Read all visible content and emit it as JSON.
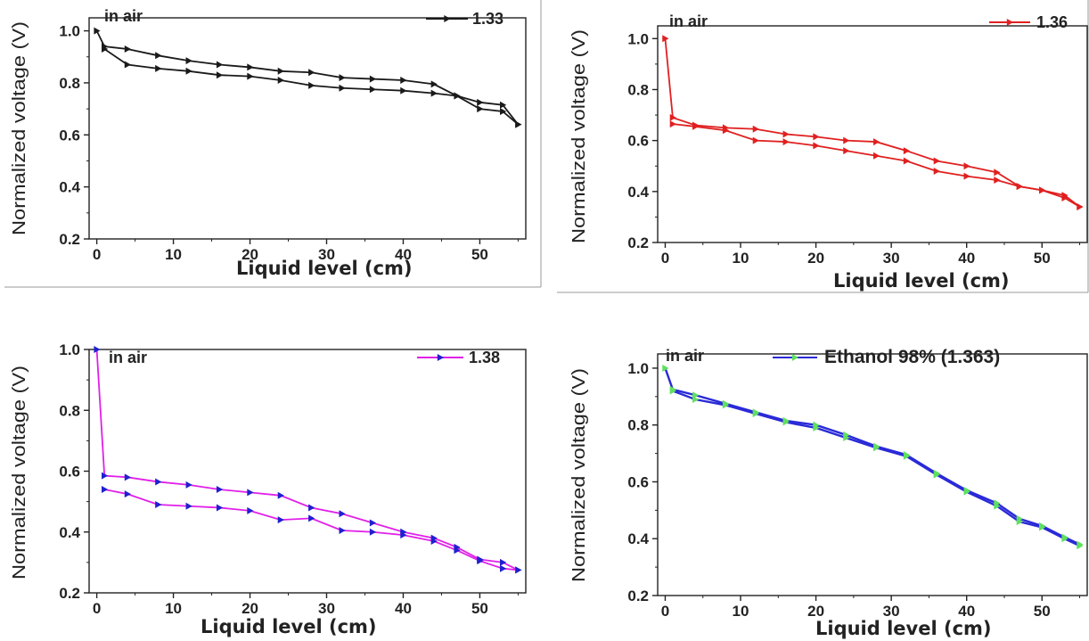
{
  "chart_data": [
    {
      "type": "line",
      "xlabel": "Liquid level (cm)",
      "ylabel": "Normalized voltage (V)",
      "xlim": [
        -1,
        56
      ],
      "ylim": [
        0.2,
        1.05
      ],
      "xticks": [
        "0",
        "10",
        "20",
        "30",
        "40",
        "50"
      ],
      "yticks": [
        "0.2",
        "0.4",
        "0.6",
        "0.8",
        "1.0"
      ],
      "annotation": "in air",
      "color": "#1a1a1a",
      "legend_position": "top-right",
      "series": [
        {
          "name": "1.33",
          "x": [
            0,
            1,
            4,
            8,
            12,
            16,
            20,
            24,
            28,
            32,
            36,
            40,
            44,
            47,
            50,
            53,
            55
          ],
          "y": [
            1.0,
            0.94,
            0.93,
            0.905,
            0.885,
            0.87,
            0.86,
            0.845,
            0.84,
            0.82,
            0.815,
            0.81,
            0.795,
            0.75,
            0.725,
            0.715,
            0.64
          ]
        },
        {
          "x": [
            55,
            53,
            50,
            47,
            44,
            40,
            36,
            32,
            28,
            24,
            20,
            16,
            12,
            8,
            4,
            1
          ],
          "y": [
            0.64,
            0.69,
            0.7,
            0.75,
            0.76,
            0.77,
            0.775,
            0.78,
            0.79,
            0.81,
            0.825,
            0.83,
            0.845,
            0.855,
            0.87,
            0.93
          ]
        }
      ]
    },
    {
      "type": "line",
      "xlabel": "Liquid level (cm)",
      "ylabel": "Normalized voltage (V)",
      "xlim": [
        -1,
        56
      ],
      "ylim": [
        0.2,
        1.05
      ],
      "xticks": [
        "0",
        "10",
        "20",
        "30",
        "40",
        "50"
      ],
      "yticks": [
        "0.2",
        "0.4",
        "0.6",
        "0.8",
        "1.0"
      ],
      "annotation": "in air",
      "color": "#e02020",
      "legend_position": "top-right",
      "series": [
        {
          "name": "1.36",
          "x": [
            0,
            1,
            4,
            8,
            12,
            16,
            20,
            24,
            28,
            32,
            36,
            40,
            44,
            47,
            50,
            53,
            55
          ],
          "y": [
            1.0,
            0.69,
            0.66,
            0.65,
            0.645,
            0.625,
            0.615,
            0.6,
            0.595,
            0.56,
            0.52,
            0.5,
            0.475,
            0.42,
            0.405,
            0.385,
            0.34
          ]
        },
        {
          "x": [
            55,
            53,
            50,
            47,
            44,
            40,
            36,
            32,
            28,
            24,
            20,
            16,
            12,
            8,
            4,
            1
          ],
          "y": [
            0.34,
            0.375,
            0.405,
            0.42,
            0.445,
            0.46,
            0.48,
            0.52,
            0.54,
            0.56,
            0.58,
            0.595,
            0.6,
            0.64,
            0.655,
            0.665
          ]
        }
      ]
    },
    {
      "type": "line",
      "xlabel": "Liquid level (cm)",
      "ylabel": "Normalized voltage (V)",
      "xlim": [
        -1,
        56
      ],
      "ylim": [
        0.2,
        1.0
      ],
      "xticks": [
        "0",
        "10",
        "20",
        "30",
        "40",
        "50"
      ],
      "yticks": [
        "0.2",
        "0.4",
        "0.6",
        "0.8",
        "1.0"
      ],
      "annotation": "in air",
      "color": "#e020e8",
      "marker_color": "#2020d0",
      "legend_position": "top-right",
      "series": [
        {
          "name": "1.38",
          "x": [
            0,
            1,
            4,
            8,
            12,
            16,
            20,
            24,
            28,
            32,
            36,
            40,
            44,
            47,
            50,
            53,
            55
          ],
          "y": [
            1.0,
            0.585,
            0.58,
            0.565,
            0.555,
            0.54,
            0.53,
            0.52,
            0.48,
            0.46,
            0.43,
            0.4,
            0.38,
            0.35,
            0.31,
            0.3,
            0.275
          ]
        },
        {
          "x": [
            55,
            53,
            50,
            47,
            44,
            40,
            36,
            32,
            28,
            24,
            20,
            16,
            12,
            8,
            4,
            1
          ],
          "y": [
            0.275,
            0.28,
            0.305,
            0.34,
            0.37,
            0.39,
            0.4,
            0.405,
            0.445,
            0.44,
            0.47,
            0.48,
            0.485,
            0.49,
            0.525,
            0.54
          ]
        }
      ]
    },
    {
      "type": "line",
      "xlabel": "Liquid level (cm)",
      "ylabel": "Normalized voltage (V)",
      "xlim": [
        -1,
        56
      ],
      "ylim": [
        0.2,
        1.05
      ],
      "xticks": [
        "0",
        "10",
        "20",
        "30",
        "40",
        "50"
      ],
      "yticks": [
        "0.2",
        "0.4",
        "0.6",
        "0.8",
        "1.0"
      ],
      "annotation": "in air",
      "color": "#2a2ad8",
      "marker_color": "#5fe05f",
      "legend_position": "top-right",
      "series": [
        {
          "name": "Ethanol 98% (1.363)",
          "x": [
            0,
            1,
            4,
            8,
            12,
            16,
            20,
            24,
            28,
            32,
            36,
            40,
            44,
            47,
            50,
            53,
            55
          ],
          "y": [
            1.0,
            0.925,
            0.905,
            0.875,
            0.845,
            0.815,
            0.8,
            0.765,
            0.725,
            0.695,
            0.63,
            0.57,
            0.525,
            0.47,
            0.445,
            0.405,
            0.38
          ]
        },
        {
          "x": [
            55,
            53,
            50,
            47,
            44,
            40,
            36,
            32,
            28,
            24,
            20,
            16,
            12,
            8,
            4,
            1
          ],
          "y": [
            0.375,
            0.4,
            0.44,
            0.46,
            0.515,
            0.565,
            0.625,
            0.69,
            0.72,
            0.755,
            0.79,
            0.81,
            0.84,
            0.87,
            0.89,
            0.92
          ]
        }
      ]
    }
  ]
}
